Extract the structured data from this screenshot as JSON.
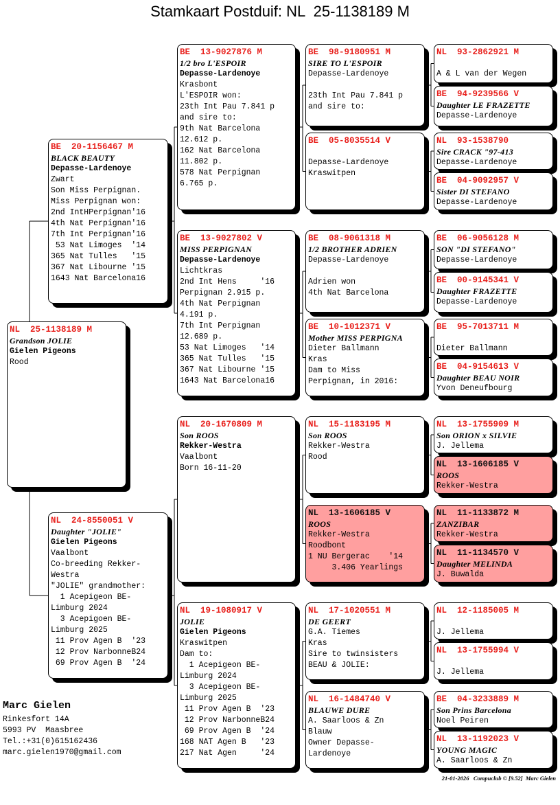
{
  "title": "Stamkaart Postduif: NL  25-1138189 M",
  "colors": {
    "ring": "#e8201c",
    "highlight": "#ff9f9f"
  },
  "subject": {
    "ring": "NL  25-1138189 M",
    "name": "Grandson JOLIE",
    "loft": "Gielen Pigeons",
    "lines": [
      "Rood"
    ]
  },
  "parents": [
    {
      "ring": "BE  20-1156467 M",
      "name": "BLACK BEAUTY",
      "loft": "Depasse-Lardenoye",
      "lines": [
        "Zwart",
        "Son Miss Perpignan.",
        "Miss Perpignan won:",
        "2nd IntHPerpignan'16",
        "4th Nat Perpignan'16",
        "7th Int Perpignan'16",
        " 53 Nat Limoges  '14",
        "365 Nat Tulles   '15",
        "367 Nat Libourne '15",
        "1643 Nat Barcelona16"
      ]
    },
    {
      "ring": "NL  24-8550051 V",
      "name": "Daughter \"JOLIE\"",
      "loft": "Gielen Pigeons",
      "lines": [
        "Vaalbont",
        "Co-breeding Rekker-",
        "Westra",
        "\"JOLIE\" grandmother:",
        "  1 Acepigeon BE-",
        "Limburg 2024",
        "  3 Acepigoen BE-",
        "Limburg 2025",
        " 11 Prov Agen B  '23",
        " 12 Prov NarbonneB24",
        " 69 Prov Agen B  '24"
      ]
    }
  ],
  "grandparents": [
    {
      "ring": "BE  13-9027876 M",
      "name": "1/2 bro L'ESPOIR",
      "loft": "Depasse-Lardenoye",
      "lines": [
        "Krasbont",
        "L'ESPOIR won:",
        "23th Int Pau 7.841 p",
        "and sire to:",
        "9th Nat Barcelona",
        "12.612 p.",
        "162 Nat Barcelona",
        "11.802 p.",
        "578 Nat Perpignan",
        "6.765 p."
      ]
    },
    {
      "ring": "BE  13-9027802 V",
      "name": "MISS PERPIGNAN",
      "loft": "Depasse-Lardenoye",
      "lines": [
        "Lichtkras",
        "2nd Int Hens     '16",
        "Perpignan 2.915 p.",
        "4th Nat Perpignan",
        "4.191 p.",
        "7th Int Perpignan",
        "12.689 p.",
        "53 Nat Limoges   '14",
        "365 Nat Tulles   '15",
        "367 Nat Libourne '15",
        "1643 Nat Barcelona16"
      ]
    },
    {
      "ring": "NL  20-1670809 M",
      "name": "Son ROOS",
      "loft": "Rekker-Westra",
      "lines": [
        "Vaalbont",
        "Born 16-11-20"
      ]
    },
    {
      "ring": "NL  19-1080917 V",
      "name": "JOLIE",
      "loft": "Gielen Pigeons",
      "lines": [
        "Kraswitpen",
        "Dam to:",
        "  1 Acepigeon BE-",
        "Limburg 2024",
        "  3 Acepigeon BE-",
        "Limburg 2025",
        " 11 Prov Agen B  '23",
        " 12 Prov NarbonneB24",
        " 69 Prov Agen B  '24",
        "168 NAT Agen B   '23",
        "217 Nat Agen     '24"
      ]
    }
  ],
  "great_grandparents": [
    {
      "ring": "BE  98-9180951 M",
      "name": "SIRE TO L'ESPOIR",
      "loft": "Depasse-Lardenoye",
      "lines": [
        "",
        "23th Int Pau 7.841 p",
        "and sire to:"
      ]
    },
    {
      "ring": "BE  05-8035514 V",
      "name": "",
      "loft": "Depasse-Lardenoye",
      "lines": [
        "Kraswitpen"
      ]
    },
    {
      "ring": "BE  08-9061318 M",
      "name": "1/2 BROTHER ADRIEN",
      "loft": "Depasse-Lardenoye",
      "lines": [
        "",
        "Adrien won",
        "4th Nat Barcelona"
      ]
    },
    {
      "ring": "BE  10-1012371 V",
      "name": "Mother MISS PERPIGNA",
      "loft": "Dieter Ballmann",
      "lines": [
        "Kras",
        "Dam to Miss",
        "Perpignan, in 2016:"
      ]
    },
    {
      "ring": "NL  15-1183195 M",
      "name": "Son ROOS",
      "loft": "Rekker-Westra",
      "lines": [
        "Rood"
      ]
    },
    {
      "ring": "NL  13-1606185 V",
      "name": "ROOS",
      "loft": "Rekker-Westra",
      "lines": [
        "Roodbont",
        "1 NU Bergerac    '14",
        "     3.406 Yearlings"
      ],
      "highlight": true
    },
    {
      "ring": "NL  17-1020551 M",
      "name": "DE GEERT",
      "loft": "G.A. Tiemes",
      "lines": [
        "Kras",
        "Sire to twinsisters",
        "BEAU & JOLIE:"
      ]
    },
    {
      "ring": "NL  16-1484740 V",
      "name": "BLAUWE DURE",
      "loft": "A. Saarloos & Zn",
      "lines": [
        "Blauw",
        "Owner Depasse-",
        "Lardenoye"
      ]
    }
  ],
  "gen4": [
    {
      "ring": "NL  93-2862921 M",
      "name": "",
      "loft": "A & L van der Wegen"
    },
    {
      "ring": "BE  94-9239566 V",
      "name": "Daughter LE FRAZETTE",
      "loft": "Depasse-Lardenoye"
    },
    {
      "ring": "NL  93-1538790",
      "name": "Sire CRACK \"97-413",
      "loft": "Depasse-Lardenoye"
    },
    {
      "ring": "BE  04-9092957 V",
      "name": "Sister DI STEFANO",
      "loft": "Depasse-Lardenoye"
    },
    {
      "ring": "BE  06-9056128 M",
      "name": "SON \"DI STEFANO\"",
      "loft": "Depasse-Lardenoye"
    },
    {
      "ring": "BE  00-9145341 V",
      "name": "Daughter FRAZETTE",
      "loft": "Depasse-Lardenoye"
    },
    {
      "ring": "BE  95-7013711 M",
      "name": "",
      "loft": "Dieter Ballmann"
    },
    {
      "ring": "BE  04-9154613 V",
      "name": "Daughter BEAU NOIR",
      "loft": "Yvon Deneufbourg"
    },
    {
      "ring": "NL  13-1755909 M",
      "name": "Son ORION x SILVIE",
      "loft": "J. Jellema"
    },
    {
      "ring": "NL  13-1606185 V",
      "name": "ROOS",
      "loft": "Rekker-Westra",
      "highlight": true
    },
    {
      "ring": "NL  11-1133872 M",
      "name": "ZANZIBAR",
      "loft": "Rekker-Westra",
      "highlight": true
    },
    {
      "ring": "NL  11-1134570 V",
      "name": "Daughter MELINDA",
      "loft": "J. Buwalda",
      "highlight": true
    },
    {
      "ring": "NL  12-1185005 M",
      "name": "",
      "loft": "J. Jellema"
    },
    {
      "ring": "NL  13-1755994 V",
      "name": "",
      "loft": "J. Jellema"
    },
    {
      "ring": "BE  04-3233889 M",
      "name": "Son Prins Barcelona",
      "loft": "Noel Peiren"
    },
    {
      "ring": "NL  13-1192023 V",
      "name": "YOUNG MAGIC",
      "loft": "A. Saarloos & Zn"
    }
  ],
  "owner": {
    "name": "Marc Gielen",
    "address": "Rinkesfort 14A",
    "city": "5993 PV  Maasbree",
    "phone": "Tel.:+31(0)615162436",
    "email": "marc.gielen1970@gmail.com"
  },
  "footer": "21-01-2026   Compuclub © [9.52]  Marc Gielen"
}
